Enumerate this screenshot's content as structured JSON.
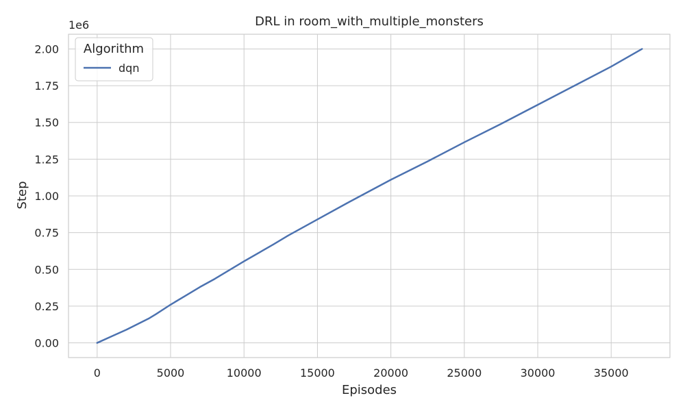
{
  "chart_data": {
    "type": "line",
    "title": "DRL in room_with_multiple_monsters",
    "xlabel": "Episodes",
    "ylabel": "Step",
    "y_offset_label": "1e6",
    "xlim": [
      -1950,
      39000
    ],
    "ylim": [
      -0.1,
      2.1
    ],
    "xticks": [
      0,
      5000,
      10000,
      15000,
      20000,
      25000,
      30000,
      35000
    ],
    "xtick_labels": [
      "0",
      "5000",
      "10000",
      "15000",
      "20000",
      "25000",
      "30000",
      "35000"
    ],
    "yticks": [
      0,
      0.25,
      0.5,
      0.75,
      1.0,
      1.25,
      1.5,
      1.75,
      2.0
    ],
    "ytick_labels": [
      "0.00",
      "0.25",
      "0.50",
      "0.75",
      "1.00",
      "1.25",
      "1.50",
      "1.75",
      "2.00"
    ],
    "grid": true,
    "legend": {
      "title": "Algorithm",
      "position": "top-left"
    },
    "series": [
      {
        "name": "dqn",
        "color": "#4c72b0",
        "x": [
          0,
          1000,
          2000,
          3000,
          3500,
          4000,
          5000,
          6000,
          7000,
          8000,
          10000,
          12000,
          13000,
          15000,
          17000,
          20000,
          22500,
          25000,
          27500,
          30000,
          32500,
          35000,
          37100
        ],
        "y": [
          0,
          0.045,
          0.09,
          0.14,
          0.165,
          0.195,
          0.26,
          0.32,
          0.38,
          0.435,
          0.555,
          0.67,
          0.73,
          0.84,
          0.95,
          1.11,
          1.235,
          1.365,
          1.49,
          1.62,
          1.75,
          1.88,
          2.0
        ]
      }
    ]
  }
}
